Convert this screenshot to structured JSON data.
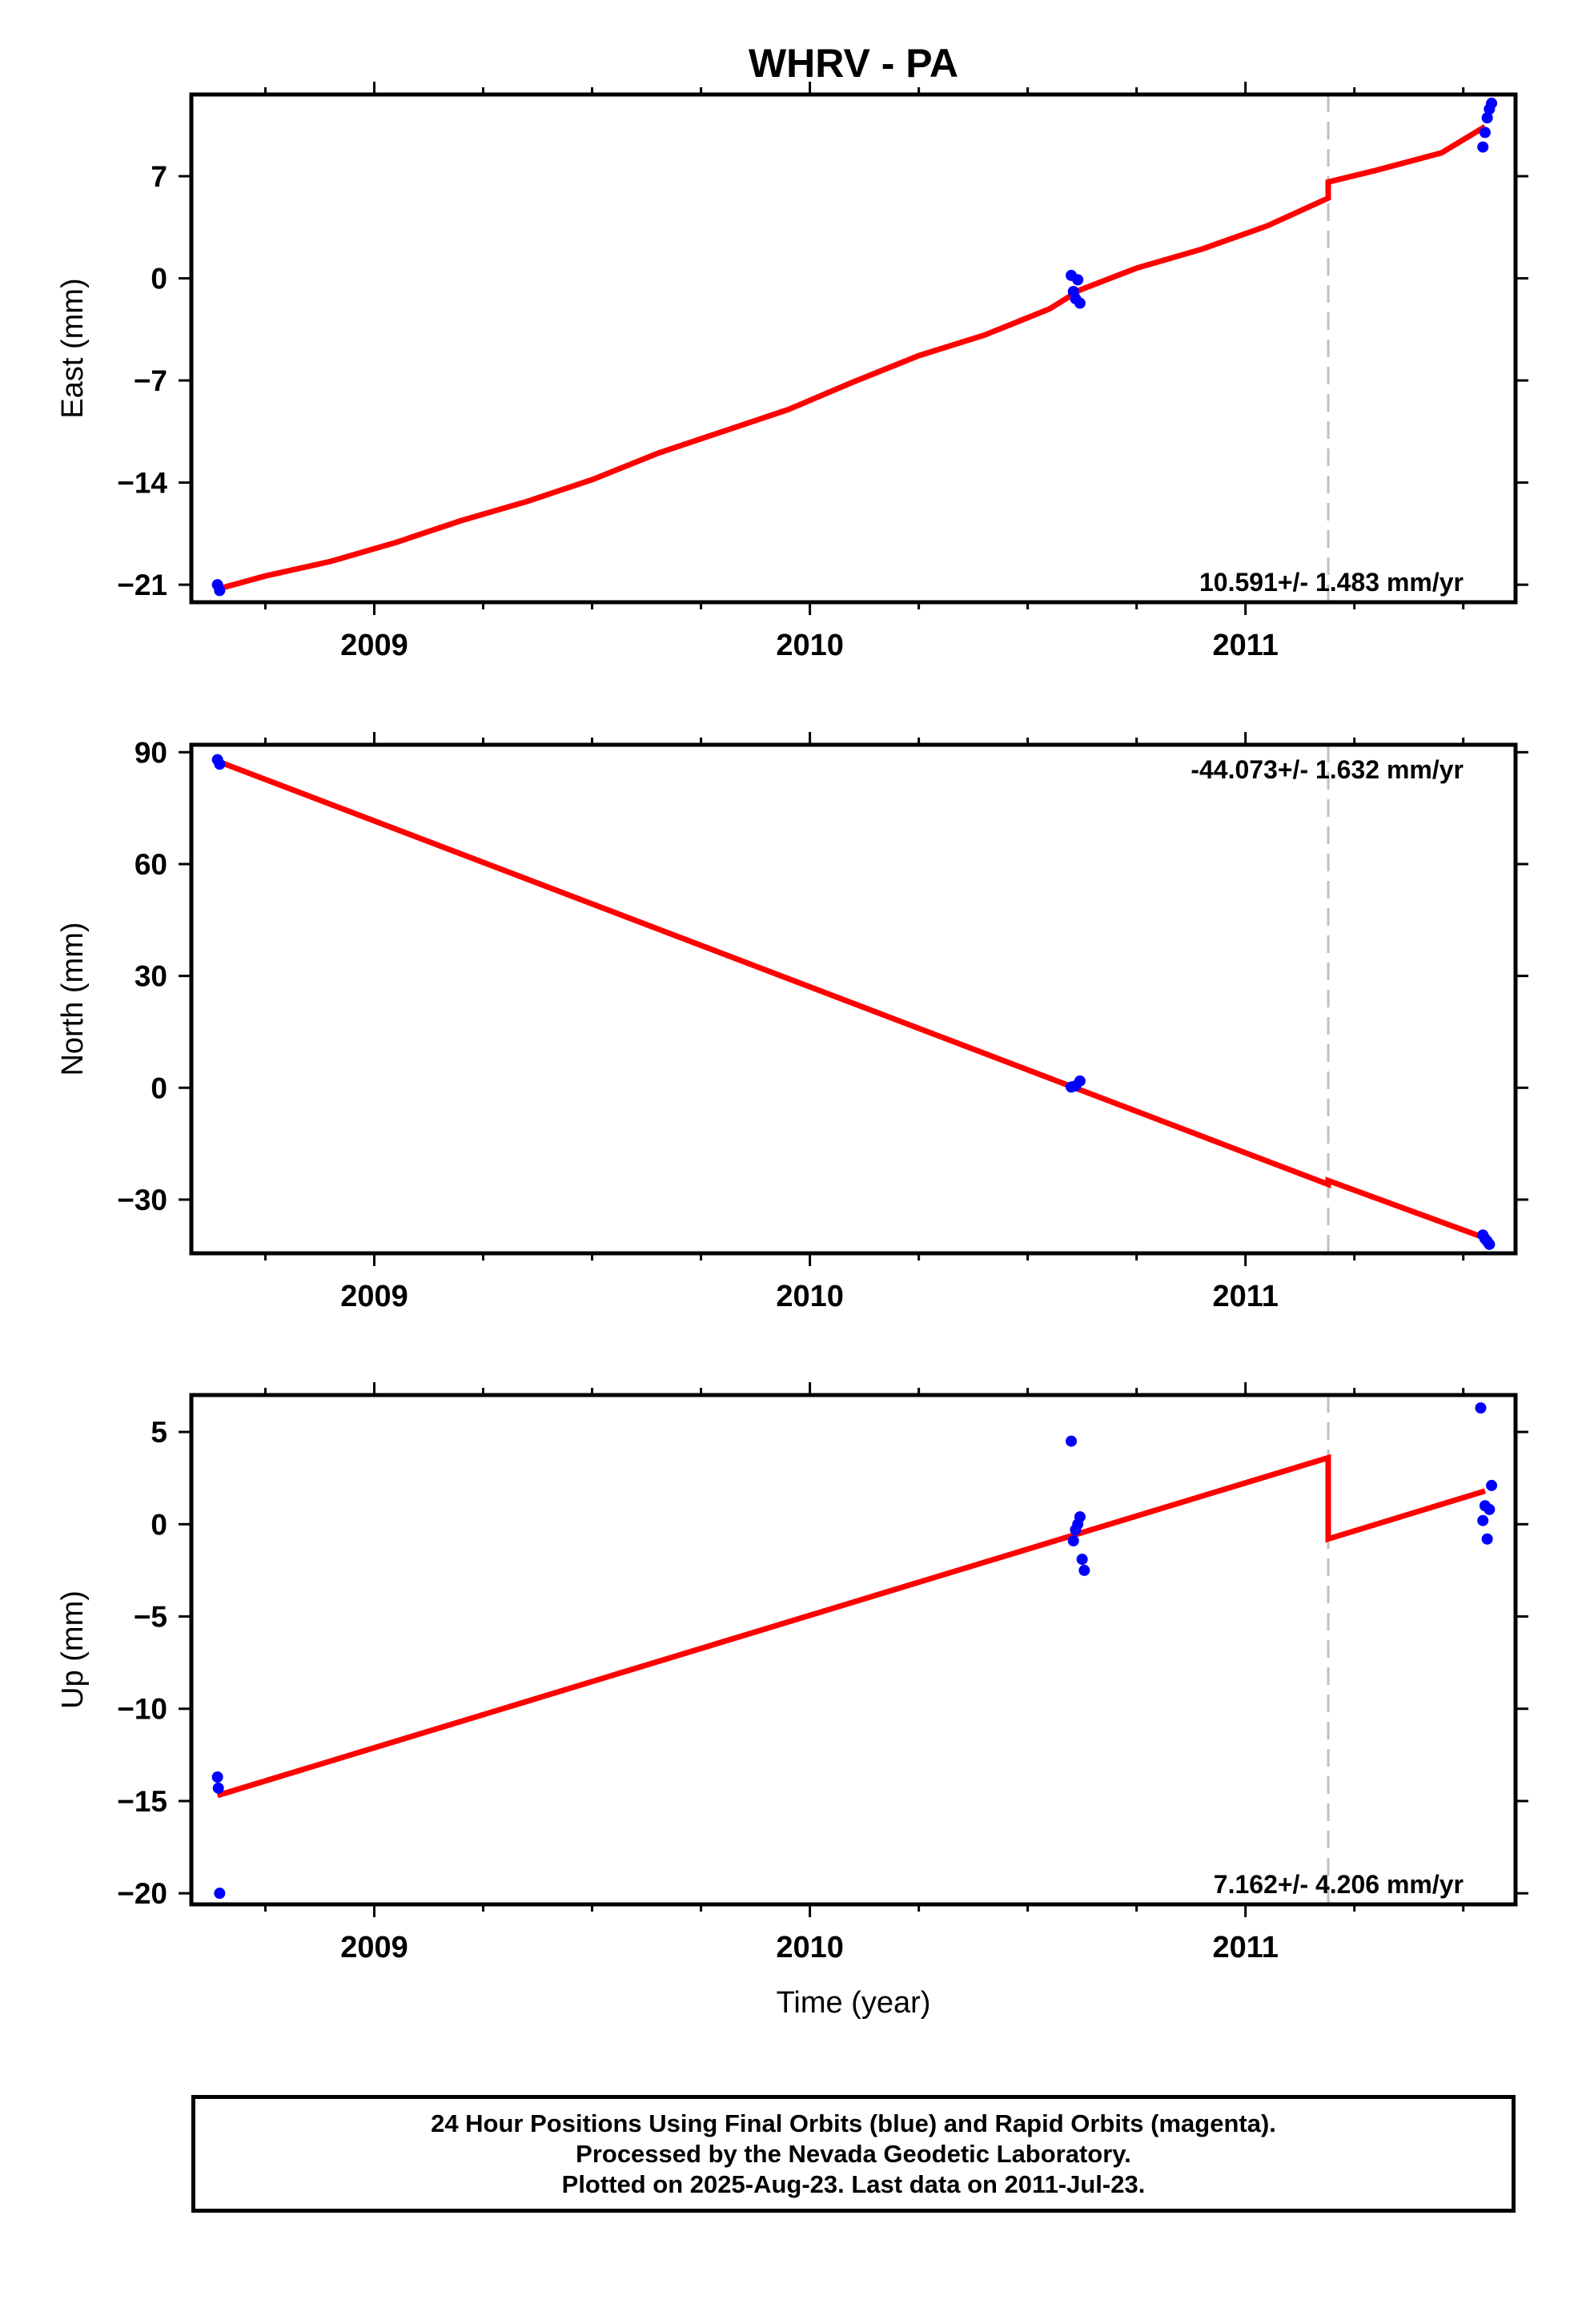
{
  "chart_data": {
    "title": "WHRV - PA",
    "type": "scatter",
    "xlabel": "Time (year)",
    "xlim": [
      2008.58,
      2011.62
    ],
    "x_ticks": [
      2009,
      2010,
      2011
    ],
    "fit_color": "#ff0000",
    "final_orbit_color": "#0000ff",
    "rapid_orbit_color": "#ff00ff",
    "event_color": "#c0c0c0",
    "event_time": 2011.19,
    "grid": false,
    "panels": [
      {
        "name": "east",
        "ylabel": "East (mm)",
        "ylim": [
          -22.2,
          12.6
        ],
        "y_ticks": [
          -21,
          -14,
          -7,
          0,
          7
        ],
        "y_tick_labels": [
          "−21",
          "−14",
          "−7",
          "0",
          "7"
        ],
        "rate_text": "10.591+/- 1.483 mm/yr",
        "rate_position": "bottom-right",
        "points": {
          "x": [
            2008.64,
            2008.645,
            2010.6,
            2010.605,
            2010.61,
            2010.615,
            2010.62,
            2011.545,
            2011.55,
            2011.555,
            2011.56,
            2011.565
          ],
          "y": [
            -21.0,
            -21.4,
            0.2,
            -0.9,
            -1.4,
            -0.1,
            -1.7,
            9.0,
            10.0,
            11.0,
            11.6,
            12.0
          ]
        },
        "fit": {
          "x": [
            2008.64,
            2008.75,
            2008.9,
            2009.05,
            2009.2,
            2009.35,
            2009.5,
            2009.65,
            2009.8,
            2009.95,
            2010.1,
            2010.25,
            2010.4,
            2010.55,
            2010.62,
            2010.75,
            2010.9,
            2011.05,
            2011.19,
            2011.19,
            2011.3,
            2011.45,
            2011.55
          ],
          "y": [
            -21.3,
            -20.4,
            -19.4,
            -18.1,
            -16.6,
            -15.3,
            -13.8,
            -12.0,
            -10.5,
            -9.0,
            -7.1,
            -5.3,
            -3.9,
            -2.1,
            -0.8,
            0.7,
            2.0,
            3.6,
            5.5,
            6.6,
            7.4,
            8.6,
            10.4
          ]
        }
      },
      {
        "name": "north",
        "ylabel": "North (mm)",
        "ylim": [
          -44.4,
          92.0
        ],
        "y_ticks": [
          -30,
          0,
          30,
          60,
          90
        ],
        "y_tick_labels": [
          "−30",
          "0",
          "30",
          "60",
          "90"
        ],
        "rate_text": "-44.073+/- 1.632 mm/yr",
        "rate_position": "top-right",
        "points": {
          "x": [
            2008.64,
            2008.645,
            2010.6,
            2010.61,
            2010.62,
            2011.545,
            2011.55,
            2011.555,
            2011.56
          ],
          "y": [
            88.0,
            86.8,
            0.2,
            0.5,
            1.8,
            -39.5,
            -40.5,
            -41.2,
            -42.0
          ]
        },
        "fit": {
          "x": [
            2008.64,
            2011.19,
            2011.19,
            2011.55
          ],
          "y": [
            87.6,
            -25.9,
            -24.9,
            -40.3
          ]
        }
      },
      {
        "name": "up",
        "ylabel": "Up (mm)",
        "ylim": [
          -20.6,
          7.0
        ],
        "y_ticks": [
          -20,
          -15,
          -10,
          -5,
          0,
          5
        ],
        "y_tick_labels": [
          "−20",
          "−15",
          "−10",
          "−5",
          "0",
          "5"
        ],
        "rate_text": "7.162+/- 4.206 mm/yr",
        "rate_position": "bottom-right",
        "points": {
          "x": [
            2008.64,
            2008.642,
            2008.645,
            2010.6,
            2010.605,
            2010.61,
            2010.615,
            2010.62,
            2010.625,
            2010.63,
            2011.54,
            2011.545,
            2011.55,
            2011.555,
            2011.56,
            2011.565
          ],
          "y": [
            -13.7,
            -14.3,
            -20.0,
            4.5,
            -0.9,
            -0.3,
            0.0,
            0.4,
            -1.9,
            -2.5,
            6.3,
            0.2,
            1.0,
            -0.8,
            0.8,
            2.1
          ]
        },
        "fit": {
          "x": [
            2008.64,
            2011.19,
            2011.19,
            2011.55
          ],
          "y": [
            -14.7,
            3.6,
            -0.8,
            1.8
          ]
        }
      }
    ]
  },
  "footer": {
    "line1": "24 Hour Positions Using Final Orbits (blue) and Rapid Orbits (magenta).",
    "line2": "Processed by the Nevada Geodetic Laboratory.",
    "line3": "Plotted on 2025-Aug-23. Last data on 2011-Jul-23."
  }
}
